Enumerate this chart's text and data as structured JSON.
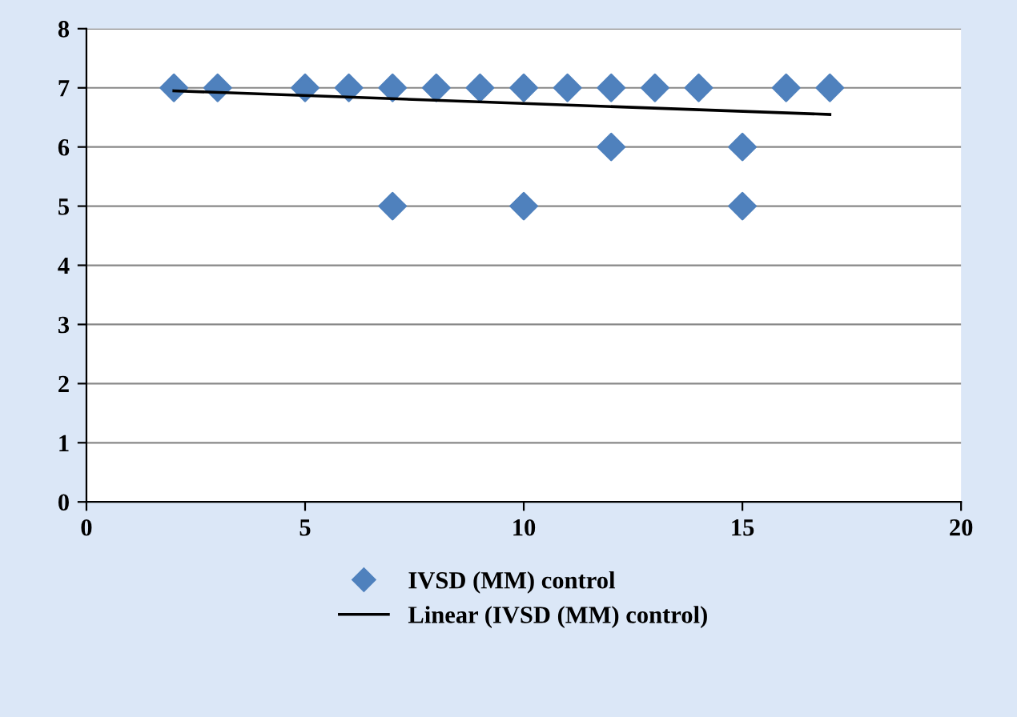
{
  "chart_data": {
    "type": "scatter",
    "xlim": [
      0,
      20
    ],
    "ylim": [
      0,
      8
    ],
    "xticks": [
      0,
      5,
      10,
      15,
      20
    ],
    "yticks": [
      0,
      1,
      2,
      3,
      4,
      5,
      6,
      7,
      8
    ],
    "grid": "y",
    "legend": "bottom",
    "series": [
      {
        "name": "IVSD (MM) control",
        "color": "#4f81bd",
        "marker": "diamond",
        "x": [
          2,
          3,
          5,
          6,
          7,
          7,
          8,
          9,
          10,
          10,
          11,
          12,
          12,
          13,
          14,
          15,
          15,
          16,
          17
        ],
        "values": [
          7,
          7,
          7,
          7,
          7,
          5,
          7,
          7,
          7,
          5,
          7,
          7,
          6,
          7,
          7,
          6,
          5,
          7,
          7
        ]
      },
      {
        "name": "Linear (IVSD (MM) control)",
        "type": "line",
        "color": "#000000",
        "x": [
          2,
          17
        ],
        "values": [
          6.95,
          6.55
        ]
      }
    ]
  }
}
